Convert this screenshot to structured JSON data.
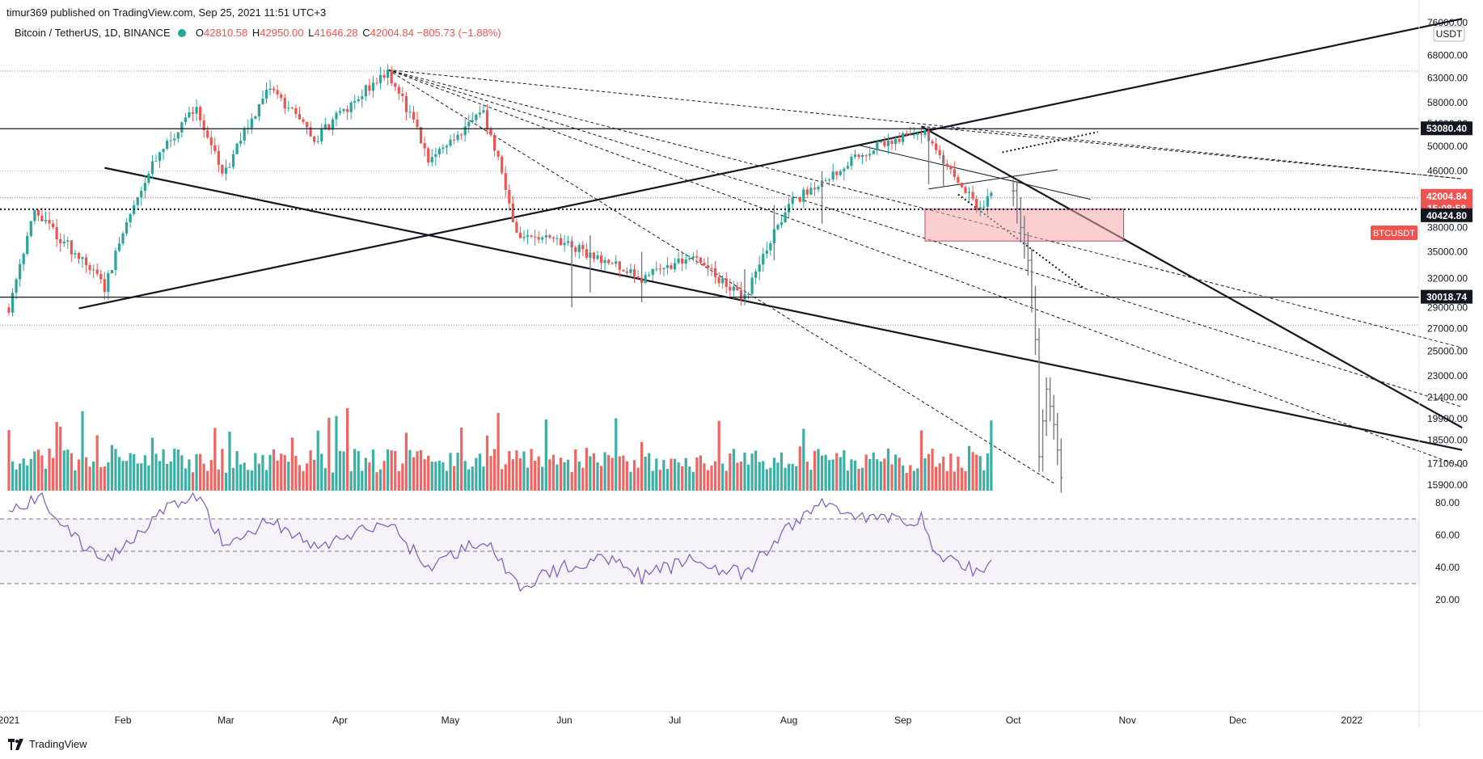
{
  "header": {
    "published": "timur369 published on TradingView.com, Sep 25, 2021 11:51 UTC+3"
  },
  "legend": {
    "symbol": "Bitcoin / TetherUS, 1D, BINANCE",
    "open_label": "O",
    "open": "42810.58",
    "high_label": "H",
    "high": "42950.00",
    "low_label": "L",
    "low": "41646.28",
    "close_label": "C",
    "close": "42004.84",
    "change": "−805.73 (−1.88%)"
  },
  "price_axis": {
    "currency": "USDT",
    "ticks": [
      "76000.00",
      "68000.00",
      "63000.00",
      "58000.00",
      "54000.00",
      "50000.00",
      "46000.00",
      "38000.00",
      "35000.00",
      "32000.00",
      "29000.00",
      "27000.00",
      "25000.00",
      "23000.00",
      "21400.00",
      "19900.00",
      "18500.00",
      "17100.00",
      "15900.00"
    ],
    "tags": [
      {
        "label": "53080.40",
        "value": 53080.4,
        "color": "#131722"
      },
      {
        "label": "42004.84",
        "value": 42004.84,
        "color": "#ef5350"
      },
      {
        "label": "15:08:58",
        "value": 41050,
        "color": "#ef5350"
      },
      {
        "label": "40424.80",
        "value": 40424.8,
        "color": "#131722"
      },
      {
        "label": "30018.74",
        "value": 30018.74,
        "color": "#131722"
      }
    ],
    "symbol_tag": "BTCUSDT"
  },
  "rsi_axis": {
    "ticks": [
      "80.00",
      "60.00",
      "40.00",
      "20.00"
    ]
  },
  "time_axis": {
    "labels": [
      "2021",
      "Feb",
      "Mar",
      "Apr",
      "May",
      "Jun",
      "Jul",
      "Aug",
      "Sep",
      "Oct",
      "Nov",
      "Dec",
      "2022"
    ]
  },
  "footer": {
    "brand": "TradingView"
  },
  "colors": {
    "up": "#26a69a",
    "down": "#ef5350",
    "projection": "#787b86",
    "rsi": "#7e57c2",
    "zone": "#f7a7a7"
  },
  "chart_data": {
    "type": "candlestick",
    "title": "Bitcoin / TetherUS, 1D, BINANCE",
    "y_scale": "log",
    "ylim": [
      15500,
      78000
    ],
    "x_start": "2021-01-01",
    "x_end": "2022-01-31",
    "horizontal_levels": [
      53080.4,
      40424.8,
      30018.74
    ],
    "current_price": 42004.84,
    "monthly_path": [
      [
        "2021-01-01",
        29000
      ],
      [
        "2021-01-08",
        40000
      ],
      [
        "2021-01-27",
        31000
      ],
      [
        "2021-02-08",
        46000
      ],
      [
        "2021-02-21",
        57000
      ],
      [
        "2021-02-28",
        45000
      ],
      [
        "2021-03-13",
        61000
      ],
      [
        "2021-03-25",
        51000
      ],
      [
        "2021-04-14",
        64500
      ],
      [
        "2021-04-25",
        48000
      ],
      [
        "2021-05-10",
        56000
      ],
      [
        "2021-05-19",
        37000
      ],
      [
        "2021-06-01",
        36000
      ],
      [
        "2021-06-22",
        32000
      ],
      [
        "2021-07-05",
        34500
      ],
      [
        "2021-07-20",
        29800
      ],
      [
        "2021-08-01",
        41000
      ],
      [
        "2021-08-23",
        49500
      ],
      [
        "2021-09-06",
        52800
      ],
      [
        "2021-09-21",
        40500
      ],
      [
        "2021-09-25",
        42004.84
      ]
    ],
    "projection_path": [
      [
        "2021-10-01",
        43000
      ],
      [
        "2021-10-03",
        38000
      ],
      [
        "2021-10-05",
        34000
      ],
      [
        "2021-10-07",
        26000
      ],
      [
        "2021-10-08",
        17500
      ],
      [
        "2021-10-10",
        22000
      ],
      [
        "2021-10-12",
        19500
      ],
      [
        "2021-10-14",
        16300
      ]
    ],
    "zone": {
      "from": "2021-09-07",
      "to": "2021-10-31",
      "top": 40424.8,
      "bottom": 36300
    },
    "rsi": {
      "levels": [
        70,
        50,
        30
      ],
      "path": [
        [
          "2021-01-01",
          75
        ],
        [
          "2021-01-10",
          83
        ],
        [
          "2021-01-20",
          55
        ],
        [
          "2021-01-28",
          45
        ],
        [
          "2021-02-10",
          72
        ],
        [
          "2021-02-21",
          85
        ],
        [
          "2021-03-01",
          52
        ],
        [
          "2021-03-13",
          70
        ],
        [
          "2021-03-25",
          52
        ],
        [
          "2021-04-14",
          68
        ],
        [
          "2021-04-25",
          40
        ],
        [
          "2021-05-10",
          58
        ],
        [
          "2021-05-19",
          28
        ],
        [
          "2021-06-01",
          40
        ],
        [
          "2021-06-15",
          47
        ],
        [
          "2021-06-22",
          34
        ],
        [
          "2021-07-05",
          45
        ],
        [
          "2021-07-20",
          35
        ],
        [
          "2021-08-01",
          65
        ],
        [
          "2021-08-10",
          80
        ],
        [
          "2021-08-23",
          70
        ],
        [
          "2021-09-06",
          70
        ],
        [
          "2021-09-10",
          48
        ],
        [
          "2021-09-21",
          38
        ],
        [
          "2021-09-25",
          41
        ]
      ]
    }
  }
}
